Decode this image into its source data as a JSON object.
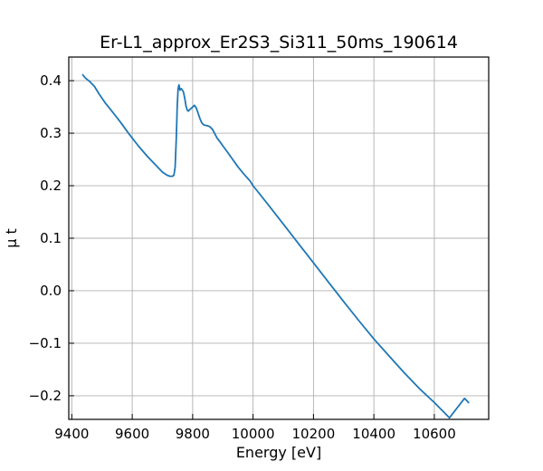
{
  "chart_data": {
    "type": "line",
    "title": "Er-L1_approx_Er2S3_Si311_50ms_190614",
    "xlabel": "Energy [eV]",
    "ylabel": "μ t",
    "xlim": [
      9390,
      10780
    ],
    "ylim": [
      -0.245,
      0.445
    ],
    "x_ticks": [
      9400,
      9600,
      9800,
      10000,
      10200,
      10400,
      10600
    ],
    "y_ticks": [
      -0.2,
      -0.1,
      0.0,
      0.1,
      0.2,
      0.3,
      0.4
    ],
    "x_tick_labels": [
      "9400",
      "9600",
      "9800",
      "10000",
      "10200",
      "10400",
      "10600"
    ],
    "y_tick_labels": [
      "−0.2",
      "−0.1",
      "0.0",
      "0.1",
      "0.2",
      "0.3",
      "0.4"
    ],
    "grid": true,
    "line_color": "#1f77b4",
    "series": [
      {
        "x": [
          9435,
          9445,
          9460,
          9475,
          9490,
          9510,
          9530,
          9560,
          9590,
          9620,
          9650,
          9680,
          9700,
          9715,
          9725,
          9733,
          9738,
          9742,
          9746,
          9749,
          9752,
          9755,
          9758,
          9762,
          9766,
          9770,
          9774,
          9778,
          9782,
          9786,
          9790,
          9795,
          9800,
          9806,
          9812,
          9818,
          9824,
          9830,
          9836,
          9842,
          9850,
          9858,
          9866,
          9874,
          9882,
          9890,
          9900,
          9915,
          9930,
          9950,
          9970,
          9990,
          10000,
          10050,
          10100,
          10150,
          10200,
          10250,
          10300,
          10350,
          10400,
          10450,
          10500,
          10550,
          10600,
          10650,
          10700,
          10715
        ],
        "y": [
          0.412,
          0.405,
          0.398,
          0.389,
          0.375,
          0.358,
          0.344,
          0.322,
          0.298,
          0.276,
          0.256,
          0.238,
          0.226,
          0.22,
          0.218,
          0.218,
          0.22,
          0.235,
          0.29,
          0.35,
          0.385,
          0.392,
          0.382,
          0.385,
          0.382,
          0.378,
          0.366,
          0.352,
          0.344,
          0.342,
          0.345,
          0.347,
          0.35,
          0.353,
          0.348,
          0.338,
          0.328,
          0.32,
          0.316,
          0.315,
          0.314,
          0.312,
          0.307,
          0.298,
          0.29,
          0.284,
          0.276,
          0.264,
          0.252,
          0.236,
          0.222,
          0.209,
          0.2,
          0.164,
          0.127,
          0.09,
          0.053,
          0.016,
          -0.021,
          -0.057,
          -0.092,
          -0.124,
          -0.156,
          -0.186,
          -0.213,
          -0.242,
          -0.205,
          -0.214
        ]
      }
    ]
  }
}
